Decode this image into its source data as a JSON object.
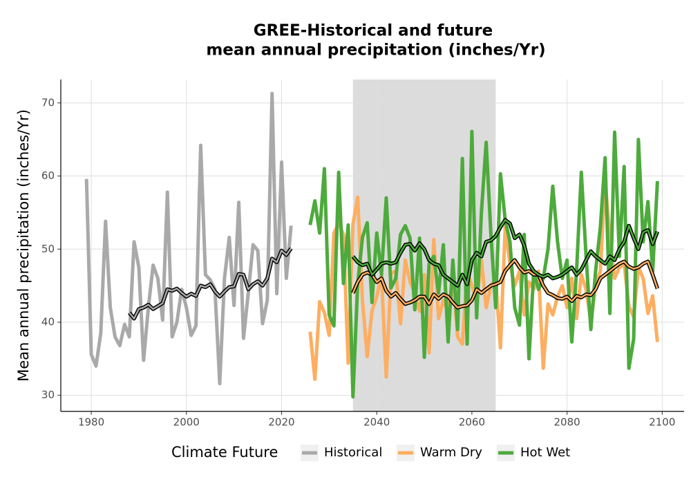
{
  "chart_data": {
    "type": "line",
    "title": [
      "GREE-Historical and future",
      "mean annual precipitation (inches/Yr)"
    ],
    "y_label": "Mean annual precipitation (inches/Yr)",
    "legend_title": "Climate Future",
    "xlim": [
      1973.6,
      2104.6
    ],
    "ylim": [
      27.8,
      73.2
    ],
    "xticks": [
      1980,
      2000,
      2020,
      2040,
      2060,
      2080,
      2100
    ],
    "yticks": [
      30,
      40,
      50,
      60,
      70
    ],
    "grid": true,
    "shade": {
      "x": [
        2035,
        2065
      ],
      "color": "#dcdcdc"
    },
    "series": [
      {
        "name": "Historical",
        "color": "#a9a9a9",
        "x": [
          1979,
          1980,
          1981,
          1982,
          1983,
          1984,
          1985,
          1986,
          1987,
          1988,
          1989,
          1990,
          1991,
          1992,
          1993,
          1994,
          1995,
          1996,
          1997,
          1998,
          1999,
          2000,
          2001,
          2002,
          2003,
          2004,
          2005,
          2006,
          2007,
          2008,
          2009,
          2010,
          2011,
          2012,
          2013,
          2014,
          2015,
          2016,
          2017,
          2018,
          2019,
          2020,
          2021,
          2022
        ],
        "values": [
          59.6,
          35.6,
          34,
          38.5,
          53.8,
          42,
          38,
          36.8,
          39.7,
          38,
          51,
          47.5,
          34.8,
          42,
          47.8,
          46,
          40.3,
          57.8,
          38,
          40,
          44.5,
          42,
          38.2,
          39.5,
          64.2,
          46.5,
          45.8,
          44.5,
          31.6,
          46,
          51.6,
          42.3,
          56.4,
          37.8,
          44,
          50.6,
          49.8,
          39.8,
          43,
          71.3,
          43.9,
          61.9,
          46,
          53.2
        ]
      },
      {
        "name": "Warm Dry",
        "color": "#fdae61",
        "x": [
          2026,
          2027,
          2028,
          2029,
          2030,
          2031,
          2032,
          2033,
          2034,
          2035,
          2036,
          2037,
          2038,
          2039,
          2040,
          2041,
          2042,
          2043,
          2044,
          2045,
          2046,
          2047,
          2048,
          2049,
          2050,
          2051,
          2052,
          2053,
          2054,
          2055,
          2056,
          2057,
          2058,
          2059,
          2060,
          2061,
          2062,
          2063,
          2064,
          2065,
          2066,
          2067,
          2068,
          2069,
          2070,
          2071,
          2072,
          2073,
          2074,
          2075,
          2076,
          2077,
          2078,
          2079,
          2080,
          2081,
          2082,
          2083,
          2084,
          2085,
          2086,
          2087,
          2088,
          2089,
          2090,
          2091,
          2092,
          2093,
          2094,
          2095,
          2096,
          2097,
          2098,
          2099
        ],
        "values": [
          38.7,
          32.2,
          42.8,
          41.3,
          38.2,
          52.2,
          53.5,
          52,
          34.4,
          53.4,
          57.1,
          43,
          35.3,
          41.5,
          43.5,
          46.5,
          32.5,
          46.7,
          47,
          39.8,
          48.5,
          45.5,
          44,
          41.5,
          46.5,
          35.8,
          51.3,
          40.5,
          43,
          41.5,
          46,
          38,
          37,
          47,
          45,
          43,
          48.5,
          42,
          45,
          46,
          36.5,
          53,
          48,
          45,
          47,
          41,
          45.5,
          44.5,
          47,
          33.7,
          42.5,
          41,
          43.5,
          45,
          42,
          46,
          40.5,
          46.5,
          44.5,
          40,
          45,
          47,
          59.6,
          51.4,
          46,
          47.5,
          48,
          42.2,
          40.7,
          47.5,
          46,
          41.2,
          43.6,
          37.3
        ]
      },
      {
        "name": "Hot Wet",
        "color": "#4daa3c",
        "x": [
          2026,
          2027,
          2028,
          2029,
          2030,
          2031,
          2032,
          2033,
          2034,
          2035,
          2036,
          2037,
          2038,
          2039,
          2040,
          2041,
          2042,
          2043,
          2044,
          2045,
          2046,
          2047,
          2048,
          2049,
          2050,
          2051,
          2052,
          2053,
          2054,
          2055,
          2056,
          2057,
          2058,
          2059,
          2060,
          2061,
          2062,
          2063,
          2064,
          2065,
          2066,
          2067,
          2068,
          2069,
          2070,
          2071,
          2072,
          2073,
          2074,
          2075,
          2076,
          2077,
          2078,
          2079,
          2080,
          2081,
          2082,
          2083,
          2084,
          2085,
          2086,
          2087,
          2088,
          2089,
          2090,
          2091,
          2092,
          2093,
          2094,
          2095,
          2096,
          2097,
          2098,
          2099
        ],
        "values": [
          53.3,
          56.6,
          52.2,
          61,
          41,
          39.5,
          60.5,
          45.3,
          53.3,
          29.8,
          45.3,
          51.6,
          53.6,
          42.7,
          52.2,
          46.5,
          57,
          44.7,
          46,
          52,
          53.2,
          51.5,
          41.7,
          51.5,
          35.2,
          48,
          49,
          44,
          50.6,
          37.3,
          48.5,
          39,
          62.4,
          37,
          66.1,
          40.6,
          55,
          64.6,
          52,
          42,
          60.3,
          54,
          51,
          42,
          39.6,
          52,
          35,
          47,
          44.5,
          46,
          50,
          58.6,
          51,
          46,
          48.5,
          37.3,
          47,
          60.5,
          49,
          39,
          47,
          53,
          62.5,
          41.2,
          66,
          49,
          61.3,
          33.7,
          37.7,
          65,
          51,
          56.5,
          47,
          59.3
        ]
      }
    ],
    "smoothed": [
      {
        "color": "#a9a9a9",
        "x": [
          1988,
          1989,
          1990,
          1991,
          1992,
          1993,
          1994,
          1995,
          1996,
          1997,
          1998,
          1999,
          2000,
          2001,
          2002,
          2003,
          2004,
          2005,
          2006,
          2007,
          2008,
          2009,
          2010,
          2011,
          2012,
          2013,
          2014,
          2015,
          2016,
          2017,
          2018,
          2019,
          2020,
          2021,
          2022
        ],
        "values": [
          41.3,
          40.5,
          41.8,
          42,
          42.4,
          41.8,
          42.2,
          42.6,
          44.5,
          44.3,
          44.6,
          44,
          43.5,
          43.9,
          43.6,
          45,
          44.8,
          45.2,
          44.2,
          43.5,
          44.2,
          44.8,
          44.9,
          46.6,
          46.5,
          44.5,
          45.2,
          45.6,
          45,
          46,
          48.7,
          48.2,
          49.8,
          49.2,
          50.1
        ]
      },
      {
        "color": "#fdae61",
        "x": [
          2035,
          2036,
          2037,
          2038,
          2039,
          2040,
          2041,
          2042,
          2043,
          2044,
          2045,
          2046,
          2047,
          2048,
          2049,
          2050,
          2051,
          2052,
          2053,
          2054,
          2055,
          2056,
          2057,
          2058,
          2059,
          2060,
          2061,
          2062,
          2063,
          2064,
          2065,
          2066,
          2067,
          2068,
          2069,
          2070,
          2071,
          2072,
          2073,
          2074,
          2075,
          2076,
          2077,
          2078,
          2079,
          2080,
          2081,
          2082,
          2083,
          2084,
          2085,
          2086,
          2087,
          2088,
          2089,
          2090,
          2091,
          2092,
          2093,
          2094,
          2095,
          2096,
          2097,
          2098,
          2099
        ],
        "values": [
          44,
          45.5,
          46.5,
          46.8,
          46.5,
          45.5,
          46,
          44.3,
          43.5,
          44,
          43.2,
          42.5,
          42.7,
          43,
          43.5,
          43.5,
          42.5,
          43.8,
          43.2,
          43.8,
          43.5,
          42.7,
          42,
          42.2,
          42.3,
          43,
          44.5,
          44,
          44.5,
          45,
          45.2,
          45.5,
          47,
          47.8,
          48.5,
          47.5,
          46.8,
          47,
          46.5,
          46.5,
          45,
          44,
          43.7,
          43.3,
          43.2,
          43.5,
          42.9,
          43.6,
          43.4,
          43.8,
          43.7,
          44.5,
          46,
          46.5,
          47,
          47.5,
          48,
          48.3,
          47.6,
          47.3,
          47.5,
          48,
          48.3,
          46.5,
          44.6
        ]
      },
      {
        "color": "#4daa3c",
        "x": [
          2035,
          2036,
          2037,
          2038,
          2039,
          2040,
          2041,
          2042,
          2043,
          2044,
          2045,
          2046,
          2047,
          2048,
          2049,
          2050,
          2051,
          2052,
          2053,
          2054,
          2055,
          2056,
          2057,
          2058,
          2059,
          2060,
          2061,
          2062,
          2063,
          2064,
          2065,
          2066,
          2067,
          2068,
          2069,
          2070,
          2071,
          2072,
          2073,
          2074,
          2075,
          2076,
          2077,
          2078,
          2079,
          2080,
          2081,
          2082,
          2083,
          2084,
          2085,
          2086,
          2087,
          2088,
          2089,
          2090,
          2091,
          2092,
          2093,
          2094,
          2095,
          2096,
          2097,
          2098,
          2099
        ],
        "values": [
          49,
          48.2,
          47.8,
          48,
          46.5,
          47.2,
          48,
          48.2,
          48,
          48.2,
          49.5,
          50.6,
          50.7,
          49.8,
          50.8,
          50,
          48.5,
          48,
          47.8,
          46.5,
          46,
          45.5,
          45,
          46.5,
          45.2,
          48.5,
          49.5,
          49,
          51,
          51.2,
          51.8,
          53,
          54,
          53.5,
          51.5,
          52,
          50.5,
          48,
          47,
          46.5,
          46.2,
          46.5,
          46,
          46.2,
          46.5,
          47,
          47.5,
          46.5,
          47.2,
          48.5,
          49.7,
          49,
          48.5,
          48,
          49,
          48.5,
          50,
          51,
          53.2,
          51.5,
          50,
          52.3,
          52.6,
          50.7,
          52.4
        ]
      }
    ]
  }
}
